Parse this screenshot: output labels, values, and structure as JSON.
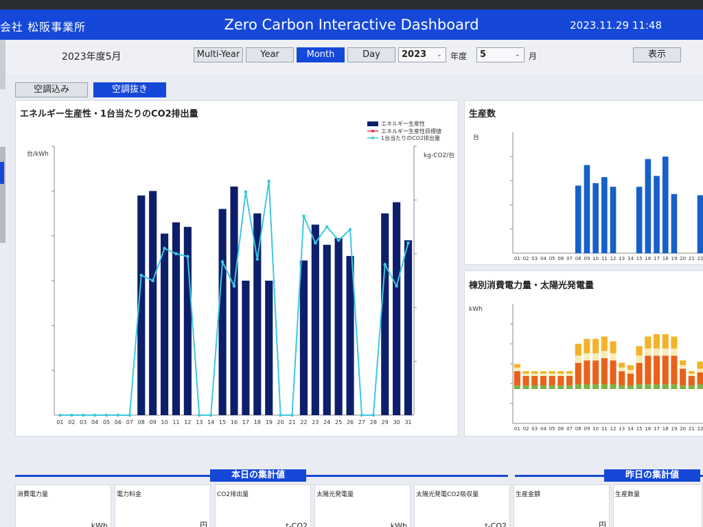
{
  "header": {
    "company": "会社 松阪事業所",
    "title": "Zero Carbon Interactive Dashboard",
    "datetime": "2023.11.29 11:48"
  },
  "toolbar": {
    "period_label": "2023年度5月",
    "buttons": [
      {
        "label": "Multi-Year",
        "active": false
      },
      {
        "label": "Year",
        "active": false
      },
      {
        "label": "Month",
        "active": true
      },
      {
        "label": "Day",
        "active": false
      }
    ],
    "year_value": "2023",
    "year_unit": "年度",
    "month_value": "5",
    "month_unit": "月",
    "show_label": "表示"
  },
  "view_tabs": [
    {
      "label": "空調込み",
      "active": false
    },
    {
      "label": "空調抜き",
      "active": true
    }
  ],
  "main_chart": {
    "panel_title": "エネルギー生産性・1台当たりのCO2排出量"
  },
  "prod_chart": {
    "panel_title": "生産数"
  },
  "energy_chart": {
    "panel_title": "棟別消費電力量・太陽光発電量"
  },
  "chart_data": [
    {
      "type": "bar+line",
      "title": "エネルギー生産性・1台当たりのCO2排出量",
      "y_left_label": "台/kWh",
      "y_right_label": "kg-CO2/台",
      "legend": [
        "エネルギー生産性",
        "エネルギー生産性目標値",
        "1台当たりのCO2排出量"
      ],
      "legend_placement": "top-right",
      "categories": [
        "01",
        "02",
        "03",
        "04",
        "05",
        "06",
        "07",
        "08",
        "09",
        "10",
        "11",
        "12",
        "13",
        "14",
        "15",
        "16",
        "17",
        "18",
        "19",
        "20",
        "21",
        "22",
        "23",
        "24",
        "25",
        "26",
        "27",
        "28",
        "29",
        "30",
        "31"
      ],
      "y_left_range": [
        0,
        6
      ],
      "y_right_range": [
        0,
        5
      ],
      "series": [
        {
          "name": "エネルギー生産性",
          "kind": "bar",
          "color": "#0d1f6b",
          "values": [
            0,
            0,
            0,
            0,
            0,
            0,
            0,
            4.9,
            5.0,
            4.05,
            4.3,
            4.2,
            0,
            0,
            4.6,
            5.1,
            3.0,
            4.5,
            3.0,
            0,
            0,
            3.45,
            4.25,
            3.8,
            3.95,
            3.55,
            0,
            0,
            4.5,
            4.75,
            3.9
          ]
        },
        {
          "name": "1台当たりのCO2排出量",
          "kind": "line",
          "color": "#3cc8de",
          "values": [
            0,
            0,
            0,
            0,
            0,
            0,
            0,
            2.6,
            2.5,
            3.1,
            3.0,
            2.95,
            0,
            0,
            2.85,
            2.4,
            4.15,
            2.9,
            4.35,
            0,
            0,
            3.7,
            3.2,
            3.5,
            3.25,
            3.45,
            0,
            0,
            2.8,
            2.4,
            3.2
          ]
        }
      ]
    },
    {
      "type": "bar",
      "title": "生産数",
      "ylabel": "台",
      "categories": [
        "01",
        "02",
        "03",
        "04",
        "05",
        "06",
        "07",
        "08",
        "09",
        "10",
        "11",
        "12",
        "13",
        "14",
        "15",
        "16",
        "17",
        "18",
        "19",
        "20",
        "21",
        "22"
      ],
      "y_range": [
        0,
        100
      ],
      "color": "#1760c8",
      "values": [
        0,
        0,
        0,
        0,
        0,
        0,
        0,
        56,
        73,
        58,
        63,
        55,
        0,
        0,
        55,
        78,
        64,
        80,
        49,
        0,
        0,
        48
      ]
    },
    {
      "type": "stacked-bar",
      "title": "棟別消費電力量・太陽光発電量",
      "ylabel": "kWh",
      "categories": [
        "01",
        "02",
        "03",
        "04",
        "05",
        "06",
        "07",
        "08",
        "09",
        "10",
        "11",
        "12",
        "13",
        "14",
        "15",
        "16",
        "17",
        "18",
        "19",
        "20",
        "21",
        "22"
      ],
      "y_range": [
        0,
        100
      ],
      "series": [
        {
          "name": "green",
          "color": "#7db346",
          "values": [
            3,
            3,
            3,
            3,
            3,
            3,
            3,
            4,
            4,
            4,
            4,
            4,
            3,
            3,
            4,
            4,
            4,
            4,
            4,
            3,
            3,
            4
          ]
        },
        {
          "name": "orange",
          "color": "#e8621a",
          "values": [
            12,
            8,
            8,
            8,
            8,
            8,
            8,
            18,
            20,
            20,
            22,
            20,
            12,
            10,
            18,
            24,
            24,
            24,
            24,
            14,
            8,
            10
          ]
        },
        {
          "name": "cream",
          "color": "#f6edb6",
          "values": [
            3,
            2,
            2,
            2,
            2,
            2,
            2,
            6,
            6,
            6,
            6,
            6,
            3,
            3,
            6,
            6,
            6,
            6,
            6,
            3,
            2,
            3
          ]
        },
        {
          "name": "yellow",
          "color": "#f2b32a",
          "values": [
            3,
            2,
            2,
            2,
            2,
            2,
            2,
            10,
            12,
            12,
            12,
            10,
            4,
            4,
            8,
            10,
            12,
            12,
            10,
            4,
            2,
            6
          ]
        }
      ]
    }
  ],
  "today_section": {
    "title": "本日の集計値",
    "cards": [
      {
        "label": "消費電力量",
        "unit": "kWh"
      },
      {
        "label": "電力料金",
        "unit": "円"
      },
      {
        "label": "CO2排出量",
        "unit": "t-CO2"
      },
      {
        "label": "太陽光発電量",
        "unit": "kWh"
      },
      {
        "label": "太陽光発電CO2吸収量",
        "unit": "t-CO2"
      }
    ]
  },
  "yesterday_section": {
    "title": "昨日の集計値",
    "cards": [
      {
        "label": "生産金額",
        "unit": "円"
      },
      {
        "label": "生産数量",
        "unit": ""
      }
    ]
  }
}
